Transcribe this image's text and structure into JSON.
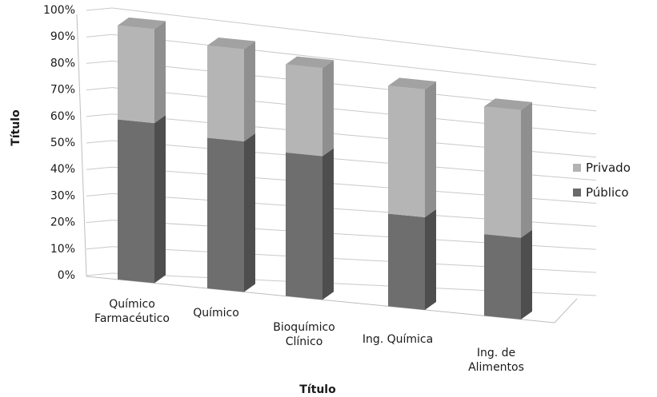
{
  "chart_data": {
    "type": "bar",
    "stacked": true,
    "percent_stacked": true,
    "three_d": true,
    "xlabel": "Título",
    "ylabel": "Título",
    "ylim": [
      0,
      100
    ],
    "y_ticks": [
      "0%",
      "10%",
      "20%",
      "30%",
      "40%",
      "50%",
      "60%",
      "70%",
      "80%",
      "90%",
      "100%"
    ],
    "categories": [
      [
        "Químico",
        "Farmacéutico"
      ],
      [
        "Químico"
      ],
      [
        "Bioquímico",
        "Clínico"
      ],
      [
        "Ing. Química"
      ],
      [
        "Ing. de",
        "Alimentos"
      ]
    ],
    "series": [
      {
        "name": "Público",
        "values": [
          63,
          62,
          62,
          42,
          39
        ],
        "color": "#6a6a6a"
      },
      {
        "name": "Privado",
        "values": [
          37,
          38,
          38,
          58,
          61
        ],
        "color": "#b3b3b3"
      }
    ],
    "legend": {
      "position": "right",
      "order": [
        "Privado",
        "Público"
      ]
    },
    "grid": true
  }
}
